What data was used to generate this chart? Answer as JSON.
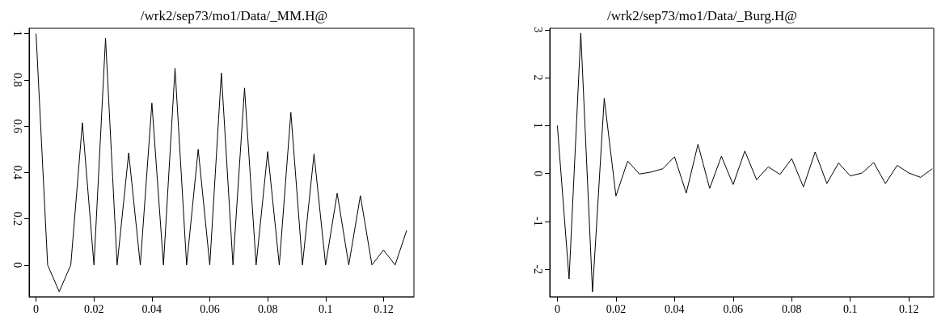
{
  "chart_data": [
    {
      "type": "line",
      "title": "/wrk2/sep73/mo1/Data/_MM.H@",
      "color": "#000000",
      "x": [
        0,
        0.004,
        0.008,
        0.012,
        0.016,
        0.02,
        0.024,
        0.028,
        0.032,
        0.036,
        0.04,
        0.044,
        0.048,
        0.052,
        0.056,
        0.06,
        0.064,
        0.068,
        0.072,
        0.076,
        0.08,
        0.084,
        0.088,
        0.092,
        0.096,
        0.1,
        0.104,
        0.108,
        0.112,
        0.116,
        0.12,
        0.124,
        0.128
      ],
      "values": [
        1,
        0,
        -0.115,
        0,
        0.615,
        0,
        0.98,
        0,
        0.485,
        0,
        0.7,
        0,
        0.85,
        0,
        0.5,
        0,
        0.83,
        0,
        0.765,
        0,
        0.49,
        0,
        0.66,
        0,
        0.48,
        0,
        0.31,
        0,
        0.3,
        0,
        0.065,
        0,
        0.15
      ],
      "xlim": [
        -0.0024,
        0.1305
      ],
      "ylim": [
        -0.137,
        1.023
      ],
      "xticks": [
        0,
        0.02,
        0.04,
        0.06,
        0.08,
        0.1,
        0.12
      ],
      "yticks": [
        0,
        0.2,
        0.4,
        0.6,
        0.8,
        1
      ]
    },
    {
      "type": "line",
      "title": "/wrk2/sep73/mo1/Data/_Burg.H@",
      "color": "#000000",
      "x": [
        0,
        0.004,
        0.008,
        0.012,
        0.016,
        0.02,
        0.024,
        0.028,
        0.032,
        0.036,
        0.04,
        0.044,
        0.048,
        0.052,
        0.056,
        0.06,
        0.064,
        0.068,
        0.072,
        0.076,
        0.08,
        0.084,
        0.088,
        0.092,
        0.096,
        0.1,
        0.104,
        0.108,
        0.112,
        0.116,
        0.12,
        0.124,
        0.128
      ],
      "values": [
        1,
        -2.2,
        2.93,
        -2.47,
        1.57,
        -0.47,
        0.26,
        -0.01,
        0.03,
        0.1,
        0.35,
        -0.41,
        0.61,
        -0.31,
        0.36,
        -0.23,
        0.47,
        -0.13,
        0.14,
        -0.02,
        0.31,
        -0.28,
        0.45,
        -0.21,
        0.22,
        -0.05,
        0.01,
        0.23,
        -0.21,
        0.17,
        0.01,
        -0.08,
        0.1
      ],
      "xlim": [
        -0.0026,
        0.1285
      ],
      "ylim": [
        -2.57,
        3.03
      ],
      "xticks": [
        0,
        0.02,
        0.04,
        0.06,
        0.08,
        0.1,
        0.12
      ],
      "yticks": [
        -2,
        -1,
        0,
        1,
        2,
        3
      ]
    }
  ]
}
